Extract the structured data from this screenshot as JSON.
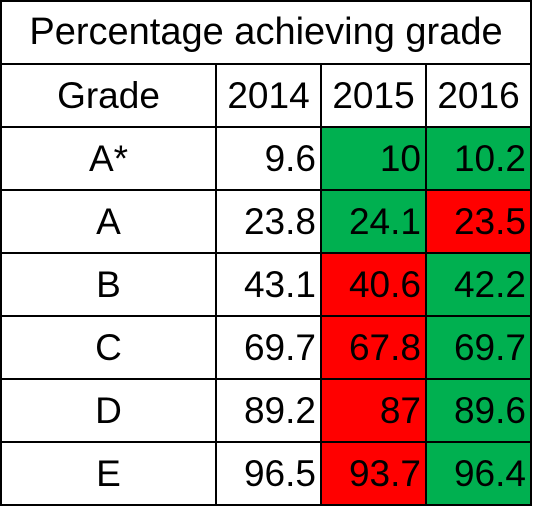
{
  "chart_data": {
    "type": "table",
    "title": "Percentage achieving grade",
    "columns": [
      "Grade",
      "2014",
      "2015",
      "2016"
    ],
    "rows": [
      {
        "grade": "A*",
        "values": [
          "9.6",
          "10",
          "10.2"
        ],
        "status": [
          "none",
          "up",
          "up"
        ]
      },
      {
        "grade": "A",
        "values": [
          "23.8",
          "24.1",
          "23.5"
        ],
        "status": [
          "none",
          "up",
          "down"
        ]
      },
      {
        "grade": "B",
        "values": [
          "43.1",
          "40.6",
          "42.2"
        ],
        "status": [
          "none",
          "down",
          "up"
        ]
      },
      {
        "grade": "C",
        "values": [
          "69.7",
          "67.8",
          "69.7"
        ],
        "status": [
          "none",
          "down",
          "up"
        ]
      },
      {
        "grade": "D",
        "values": [
          "89.2",
          "87",
          "89.6"
        ],
        "status": [
          "none",
          "down",
          "up"
        ]
      },
      {
        "grade": "E",
        "values": [
          "96.5",
          "93.7",
          "96.4"
        ],
        "status": [
          "none",
          "down",
          "up"
        ]
      }
    ],
    "colors": {
      "up": "#00b050",
      "down": "#ff0000",
      "none": "#ffffff"
    }
  }
}
